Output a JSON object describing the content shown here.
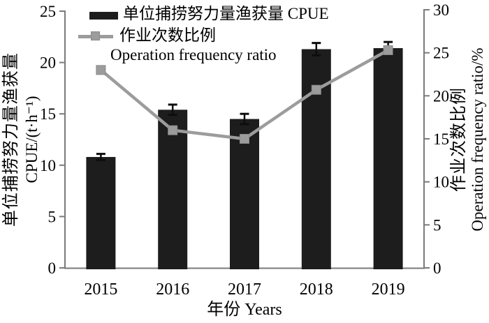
{
  "chart_data": {
    "type": "bar",
    "subtype": "dual-axis bar + line combo",
    "title": "",
    "categories": [
      "2015",
      "2016",
      "2017",
      "2018",
      "2019"
    ],
    "series": [
      {
        "name": "单位捕捞努力量渔获量 CPUE",
        "type": "bar",
        "axis": "left",
        "values": [
          10.8,
          15.4,
          14.5,
          21.3,
          21.4
        ],
        "errors": [
          0.3,
          0.5,
          0.5,
          0.6,
          0.6
        ],
        "color": "#1d1d1d"
      },
      {
        "name": "作业次数比例 Operation frequency ratio",
        "type": "line",
        "axis": "right",
        "values": [
          23.0,
          16.0,
          15.0,
          20.7,
          25.3
        ],
        "color": "#9c9c9c",
        "marker": "square",
        "marker_border": "#8a8a8a"
      }
    ],
    "left_axis": {
      "label_zh": "单位捕捞努力量渔获量",
      "label_unit": "CPUE/(t·h⁻¹)",
      "ticks": [
        0,
        5,
        10,
        15,
        20,
        25
      ],
      "range": [
        0,
        25
      ]
    },
    "right_axis": {
      "label_zh": "作业次数比例",
      "label_en": "Operation frequency ratio/%",
      "ticks": [
        0,
        5,
        10,
        15,
        20,
        25,
        30
      ],
      "range": [
        0,
        30
      ]
    },
    "x_axis": {
      "label": "年份 Years"
    },
    "legend": {
      "position": "top-left inside plot",
      "cpue_label": "单位捕捞努力量渔获量 CPUE",
      "ratio_label_zh": "作业次数比例",
      "ratio_label_en": "Operation frequency ratio"
    },
    "grid": false
  },
  "colors": {
    "bar": "#1d1d1d",
    "line": "#9c9c9c",
    "marker_border": "#8a8a8a",
    "axis": "#7a7a7a",
    "error_bar": "#0d0d0d",
    "text": "#000000",
    "background": "#ffffff"
  }
}
